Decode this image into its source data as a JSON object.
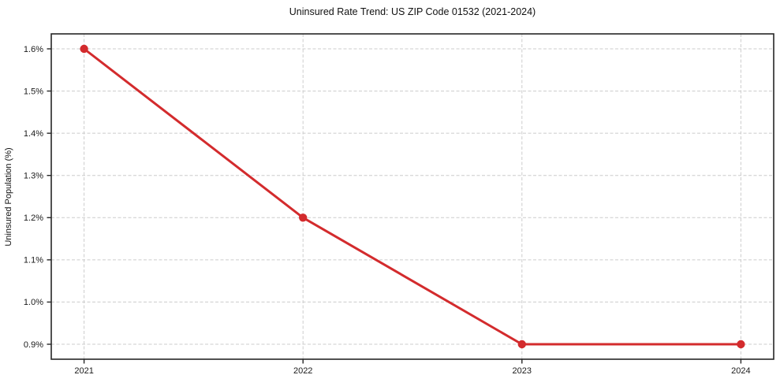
{
  "chart_data": {
    "type": "line",
    "title": "Uninsured Rate Trend: US ZIP Code 01532 (2021-2024)",
    "xlabel": "",
    "ylabel": "Uninsured Population (%)",
    "x": [
      2021,
      2022,
      2023,
      2024
    ],
    "x_tick_labels": [
      "2021",
      "2022",
      "2023",
      "2024"
    ],
    "values": [
      1.6,
      1.2,
      0.9,
      0.9
    ],
    "y_ticks": [
      0.9,
      1.0,
      1.1,
      1.2,
      1.3,
      1.4,
      1.5,
      1.6
    ],
    "y_tick_labels": [
      "0.9%",
      "1.0%",
      "1.1%",
      "1.2%",
      "1.3%",
      "1.4%",
      "1.5%",
      "1.6%"
    ],
    "ylim": [
      0.865,
      1.635
    ],
    "xlim": [
      2020.85,
      2024.15
    ],
    "grid": true,
    "legend_position": "none",
    "line_color": "#d32b2d",
    "grid_color": "#cccccc",
    "frame_color": "#262626",
    "marker": "circle"
  }
}
